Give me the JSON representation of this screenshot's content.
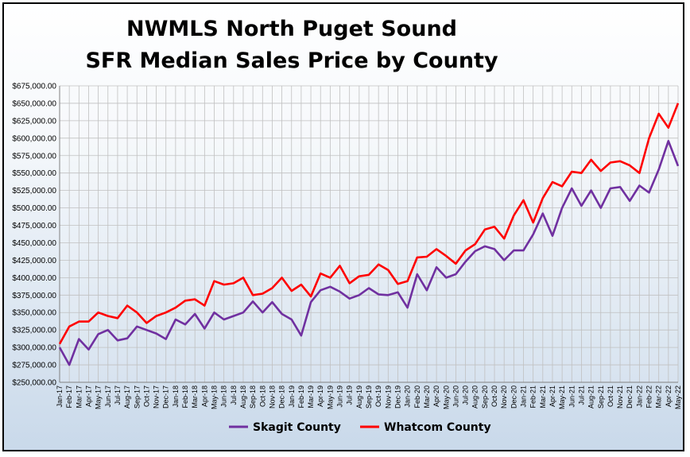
{
  "chart_data": {
    "type": "line",
    "title": "NWMLS North Puget Sound",
    "subtitle": "SFR Median Sales Price by County",
    "ylim": [
      250000,
      675000
    ],
    "y_ticks": [
      "$250,000.00",
      "$275,000.00",
      "$300,000.00",
      "$325,000.00",
      "$350,000.00",
      "$375,000.00",
      "$400,000.00",
      "$425,000.00",
      "$450,000.00",
      "$475,000.00",
      "$500,000.00",
      "$525,000.00",
      "$550,000.00",
      "$575,000.00",
      "$600,000.00",
      "$625,000.00",
      "$650,000.00",
      "$675,000.00"
    ],
    "grid": true,
    "legend_position": "bottom",
    "x": [
      "Jan-17",
      "Feb-17",
      "Mar-17",
      "Apr-17",
      "May-17",
      "Jun-17",
      "Jul-17",
      "Aug-17",
      "Sep-17",
      "Oct-17",
      "Nov-17",
      "Dec-17",
      "Jan-18",
      "Feb-18",
      "Mar-18",
      "Apr-18",
      "May-18",
      "Jun-18",
      "Jul-18",
      "Aug-18",
      "Sep-18",
      "Oct-18",
      "Nov-18",
      "Dec-18",
      "Jan-19",
      "Feb-19",
      "Mar-19",
      "Apr-19",
      "May-19",
      "Jun-19",
      "Jul-19",
      "Aug-19",
      "Sep-19",
      "Oct-19",
      "Nov-19",
      "Dec-19",
      "Jan-20",
      "Feb-20",
      "Mar-20",
      "Apr-20",
      "May-20",
      "Jun-20",
      "Jul-20",
      "Aug-20",
      "Sep-20",
      "Oct-20",
      "Nov-20",
      "Dec-20",
      "Jan-21",
      "Feb-21",
      "Mar-21",
      "Apr-21",
      "May-21",
      "Jun-21",
      "Jul-21",
      "Aug-21",
      "Sep-21",
      "Oct-21",
      "Nov-21",
      "Dec-21",
      "Jan-22",
      "Feb-22",
      "Mar-22",
      "Apr-22",
      "May-22"
    ],
    "series": [
      {
        "name": "Skagit County",
        "color": "#7030a0",
        "values": [
          300000,
          275000,
          312000,
          297000,
          319000,
          325000,
          310000,
          313000,
          330000,
          325000,
          320000,
          312000,
          340000,
          333000,
          348000,
          327000,
          350000,
          340000,
          345000,
          350000,
          366000,
          350000,
          365000,
          348000,
          340000,
          317000,
          365000,
          382000,
          387000,
          380000,
          370000,
          375000,
          385000,
          376000,
          375000,
          379000,
          357000,
          405000,
          382000,
          415000,
          400000,
          405000,
          423000,
          438000,
          445000,
          441000,
          425000,
          439000,
          439000,
          462000,
          492000,
          460000,
          500000,
          528000,
          503000,
          525000,
          500000,
          528000,
          530000,
          510000,
          532000,
          522000,
          555000,
          596000,
          560000
        ]
      },
      {
        "name": "Whatcom County",
        "color": "#ff0000",
        "values": [
          305000,
          330000,
          337000,
          337000,
          350000,
          345000,
          342000,
          360000,
          350000,
          335000,
          345000,
          350000,
          357000,
          367000,
          369000,
          360000,
          395000,
          390000,
          392000,
          400000,
          375000,
          377000,
          385000,
          400000,
          381000,
          390000,
          373000,
          406000,
          400000,
          417000,
          392000,
          402000,
          404000,
          419000,
          411000,
          391000,
          395000,
          429000,
          430000,
          441000,
          431000,
          420000,
          439000,
          448000,
          469000,
          473000,
          456000,
          489000,
          511000,
          479000,
          514000,
          537000,
          531000,
          552000,
          550000,
          569000,
          553000,
          565000,
          567000,
          561000,
          550000,
          600000,
          635000,
          615000,
          650000
        ]
      }
    ]
  }
}
